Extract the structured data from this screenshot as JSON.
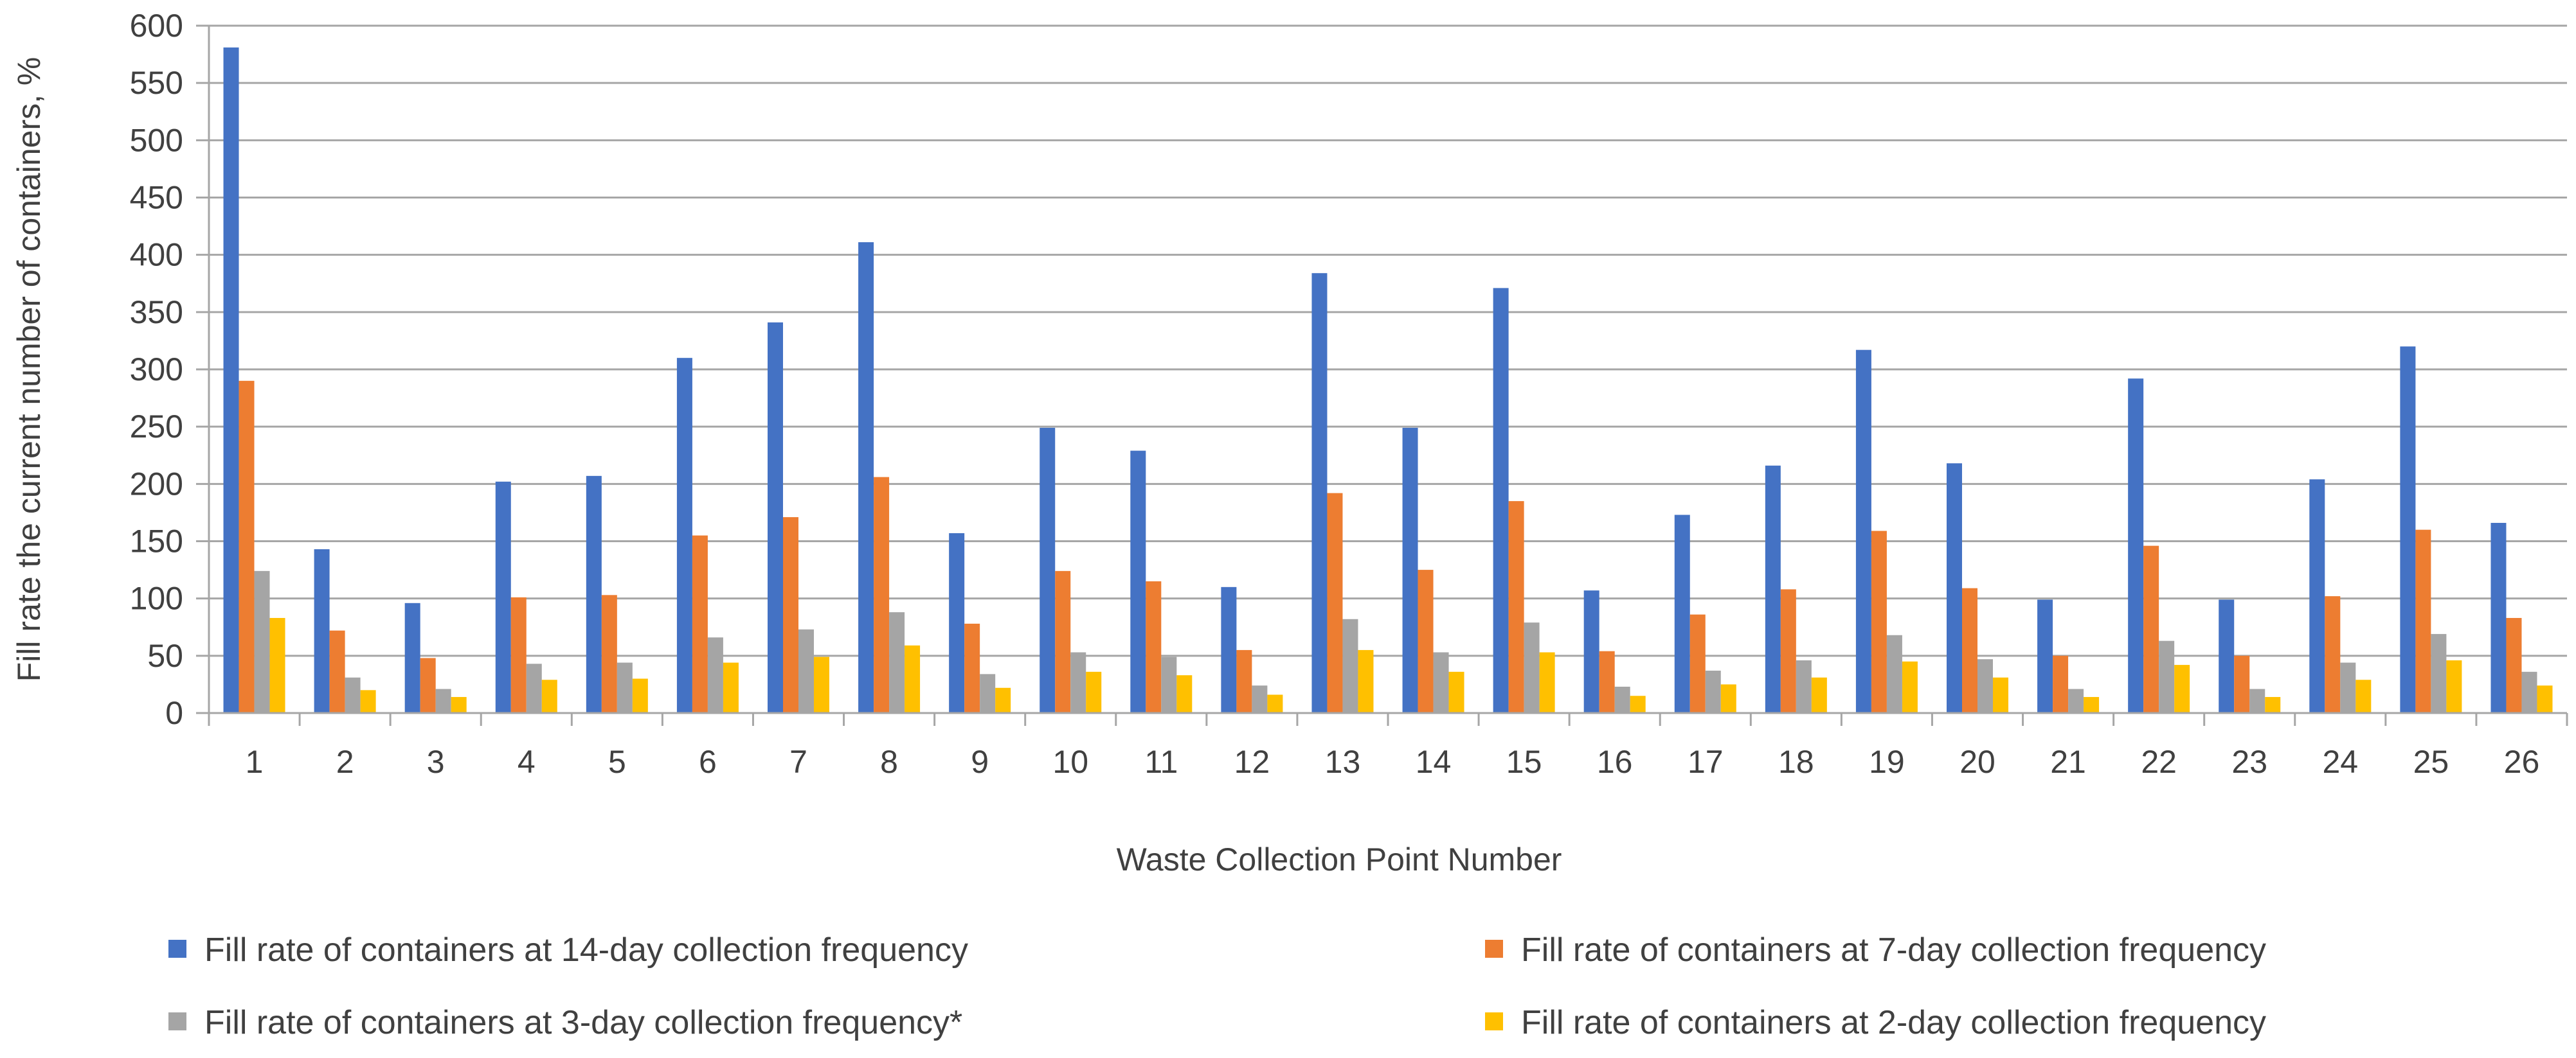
{
  "chart_data": {
    "type": "bar",
    "title": "",
    "xlabel": "Waste Collection Point Number",
    "ylabel": "Fill rate the current number of containers, %",
    "ylim": [
      0,
      600
    ],
    "yticks": [
      0,
      50,
      100,
      150,
      200,
      250,
      300,
      350,
      400,
      450,
      500,
      550,
      600
    ],
    "grid": true,
    "legend_position": "bottom",
    "categories": [
      "1",
      "2",
      "3",
      "4",
      "5",
      "6",
      "7",
      "8",
      "9",
      "10",
      "11",
      "12",
      "13",
      "14",
      "15",
      "16",
      "17",
      "18",
      "19",
      "20",
      "21",
      "22",
      "23",
      "24",
      "25",
      "26"
    ],
    "series": [
      {
        "name": "Fill rate of containers at 14-day collection frequency",
        "color": "#4472C4",
        "values": [
          581,
          143,
          96,
          202,
          207,
          310,
          341,
          411,
          157,
          249,
          229,
          110,
          384,
          249,
          371,
          107,
          173,
          216,
          317,
          218,
          99,
          292,
          99,
          204,
          320,
          166
        ]
      },
      {
        "name": "Fill rate of containers at 7-day collection frequency",
        "color": "#ED7D31",
        "values": [
          290,
          72,
          48,
          101,
          103,
          155,
          171,
          206,
          78,
          124,
          115,
          55,
          192,
          125,
          185,
          54,
          86,
          108,
          159,
          109,
          50,
          146,
          50,
          102,
          160,
          83
        ]
      },
      {
        "name": "Fill rate of containers at 3-day collection frequency*",
        "color": "#A5A5A5",
        "values": [
          124,
          31,
          21,
          43,
          44,
          66,
          73,
          88,
          34,
          53,
          49,
          24,
          82,
          53,
          79,
          23,
          37,
          46,
          68,
          47,
          21,
          63,
          21,
          44,
          69,
          36
        ]
      },
      {
        "name": "Fill rate of containers at 2-day collection frequency",
        "color": "#FFC000",
        "values": [
          83,
          20,
          14,
          29,
          30,
          44,
          49,
          59,
          22,
          36,
          33,
          16,
          55,
          36,
          53,
          15,
          25,
          31,
          45,
          31,
          14,
          42,
          14,
          29,
          46,
          24
        ]
      }
    ]
  }
}
